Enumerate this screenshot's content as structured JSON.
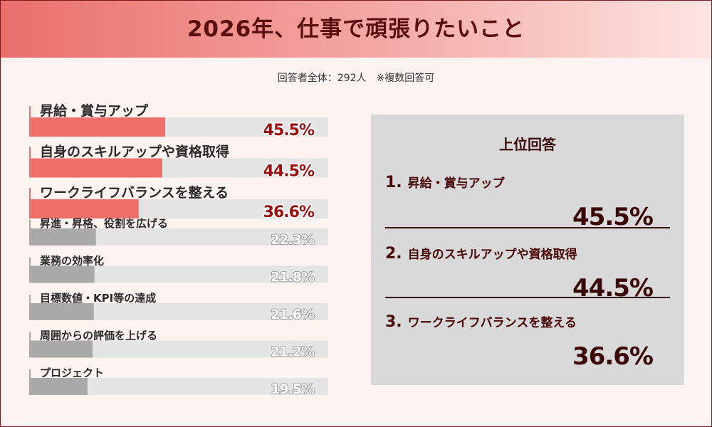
{
  "title": "2026年、仕事で頑張りたいこと",
  "respondents": "回答者全体：292人　※複数回答可",
  "chart_data": {
    "type": "bar",
    "orientation": "horizontal",
    "categories": [
      "昇給・賞与アップ",
      "自身のスキルアップや資格取得",
      "ワークライフバランスを整える",
      "昇進・昇格、役割を広げる",
      "業務の効率化",
      "目標数値・KPI等の達成",
      "周囲からの評価を上げる",
      "プロジェクト"
    ],
    "values": [
      45.5,
      44.5,
      36.6,
      22.3,
      21.8,
      21.6,
      21.2,
      19.5
    ],
    "value_labels": [
      "45.5%",
      "44.5%",
      "36.6%",
      "22.3%",
      "21.8%",
      "21.6%",
      "21.2%",
      "19.5%"
    ],
    "unit": "%",
    "highlight_top_n": 3,
    "highlight_color": "#ee6f6a",
    "other_color": "#a9a9a9",
    "track_color": "#e4e4e4"
  },
  "top_panel": {
    "title": "上位回答",
    "items": [
      {
        "rank": "1.",
        "label": "昇給・賞与アップ",
        "pct": "45.5%"
      },
      {
        "rank": "2.",
        "label": "自身のスキルアップや資格取得",
        "pct": "44.5%"
      },
      {
        "rank": "3.",
        "label": "ワークライフバランスを整える",
        "pct": "36.6%"
      }
    ]
  }
}
